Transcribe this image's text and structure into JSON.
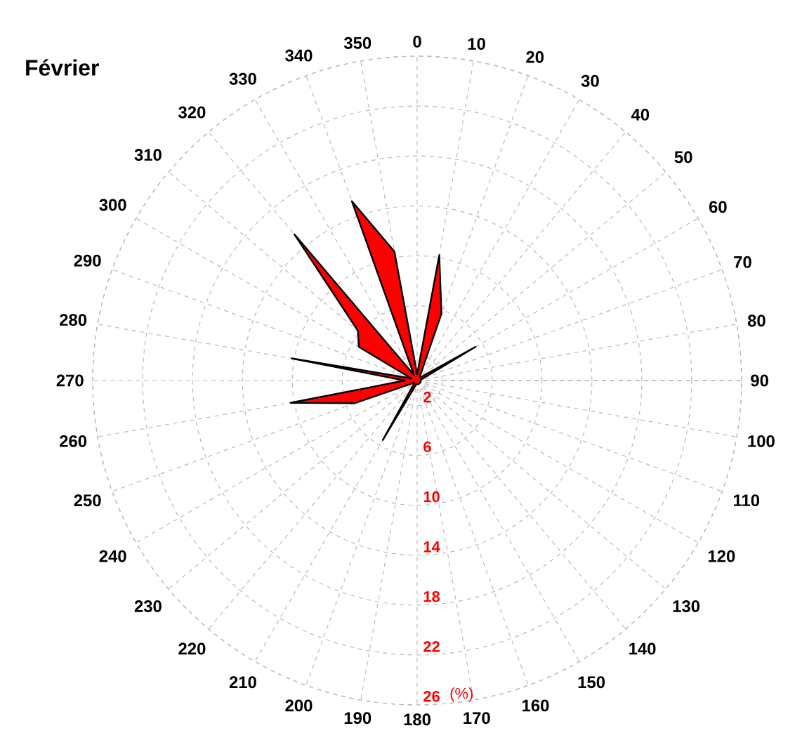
{
  "chart_data": {
    "type": "radar",
    "title": "Février",
    "ylabel": "(%)",
    "categories": [
      "0",
      "10",
      "20",
      "30",
      "40",
      "50",
      "60",
      "70",
      "80",
      "90",
      "100",
      "110",
      "120",
      "130",
      "140",
      "150",
      "160",
      "170",
      "180",
      "190",
      "200",
      "210",
      "220",
      "230",
      "240",
      "250",
      "260",
      "270",
      "280",
      "290",
      "300",
      "310",
      "320",
      "330",
      "340",
      "350"
    ],
    "series": [
      {
        "color": "#ff0000",
        "values": [
          0.5,
          10.2,
          5.7,
          0.5,
          0.3,
          0.5,
          5.4,
          0.5,
          0.3,
          0.3,
          0.3,
          0.3,
          0.3,
          0.3,
          0.3,
          0.3,
          0.3,
          0.3,
          0.3,
          0.3,
          0.5,
          5.5,
          0.5,
          0.3,
          0.5,
          5.3,
          10.3,
          1,
          10.2,
          0.5,
          5.4,
          6.2,
          15.3,
          0.5,
          15.3,
          10.5
        ]
      }
    ],
    "ylim": [
      0,
      26
    ],
    "yticks": [
      2,
      6,
      10,
      14,
      18,
      22,
      26
    ],
    "grid": true
  }
}
